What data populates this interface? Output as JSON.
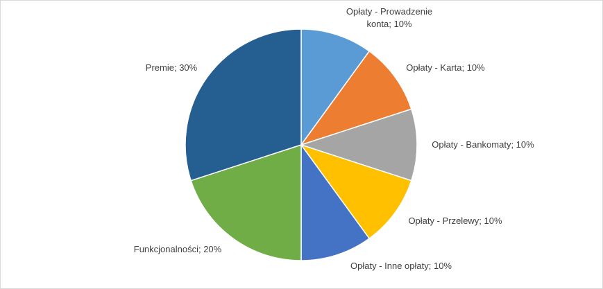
{
  "chart_data": {
    "type": "pie",
    "value_labels": [
      "Opłaty - Prowadzenie konta; 10%",
      "Opłaty - Karta; 10%",
      "Opłaty - Bankomaty; 10%",
      "Opłaty - Przelewy; 10%",
      "Opłaty - Inne opłaty; 10%",
      "Funkcjonalności; 20%",
      "Premie; 30%"
    ],
    "values": [
      10,
      10,
      10,
      10,
      10,
      20,
      30
    ],
    "colors": [
      "#5b9bd5",
      "#ed7d31",
      "#a5a5a5",
      "#ffc000",
      "#4472c4",
      "#70ad47",
      "#255e91"
    ]
  }
}
